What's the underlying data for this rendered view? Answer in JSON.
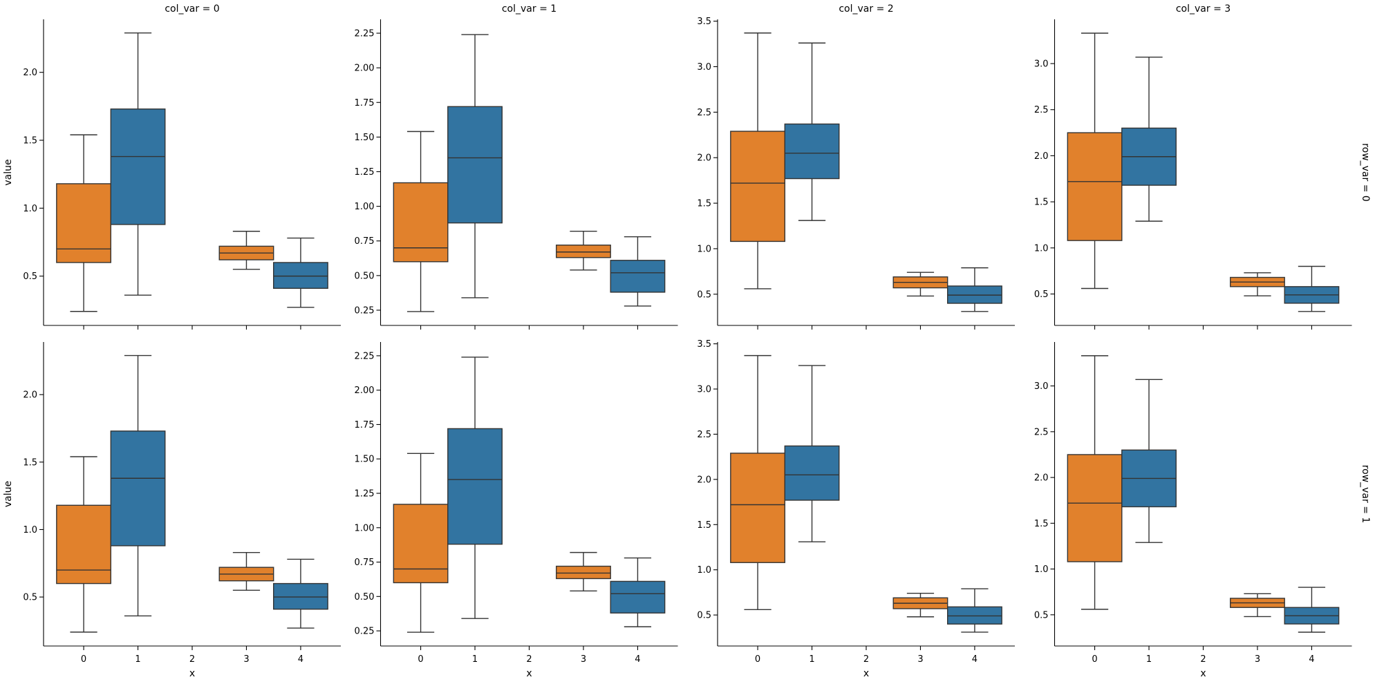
{
  "figure": {
    "background": "#ffffff"
  },
  "chart_data": {
    "type": "box",
    "title": "",
    "xlabel": "x",
    "ylabel": "value",
    "legend": "none",
    "grid": false,
    "facet_grid": {
      "n_rows": 2,
      "n_cols": 4,
      "col_titles": [
        "col_var = 0",
        "col_var = 1",
        "col_var = 2",
        "col_var = 3"
      ],
      "row_labels": [
        "row_var = 0",
        "row_var = 1"
      ],
      "rows_repeat_same_data": true,
      "x_tick_labels": [
        "0",
        "1",
        "2",
        "3",
        "4"
      ],
      "x_range": [
        -0.74,
        4.74
      ]
    },
    "colors": {
      "orange": "#e1812c",
      "blue": "#3274a1",
      "box_edge": "#333333",
      "spine": "#000000",
      "text": "#000000"
    },
    "columns": [
      {
        "title": "col_var = 0",
        "ylim": [
          0.137,
          2.39
        ],
        "yticks": [
          {
            "v": 0.5,
            "label": "0.5"
          },
          {
            "v": 1.0,
            "label": "1.0"
          },
          {
            "v": 1.5,
            "label": "1.5"
          },
          {
            "v": 2.0,
            "label": "2.0"
          }
        ],
        "boxes": [
          {
            "x": 0,
            "color": "orange",
            "whislo": 0.24,
            "q1": 0.6,
            "med": 0.7,
            "q3": 1.18,
            "whishi": 1.54
          },
          {
            "x": 1,
            "color": "blue",
            "whislo": 0.36,
            "q1": 0.88,
            "med": 1.38,
            "q3": 1.73,
            "whishi": 2.29
          },
          {
            "x": 3,
            "color": "orange",
            "whislo": 0.55,
            "q1": 0.62,
            "med": 0.67,
            "q3": 0.72,
            "whishi": 0.83
          },
          {
            "x": 4,
            "color": "blue",
            "whislo": 0.27,
            "q1": 0.41,
            "med": 0.5,
            "q3": 0.6,
            "whishi": 0.78
          }
        ]
      },
      {
        "title": "col_var = 1",
        "ylim": [
          0.14,
          2.35
        ],
        "yticks": [
          {
            "v": 0.25,
            "label": "0.25"
          },
          {
            "v": 0.5,
            "label": "0.50"
          },
          {
            "v": 0.75,
            "label": "0.75"
          },
          {
            "v": 1.0,
            "label": "1.00"
          },
          {
            "v": 1.25,
            "label": "1.25"
          },
          {
            "v": 1.5,
            "label": "1.50"
          },
          {
            "v": 1.75,
            "label": "1.75"
          },
          {
            "v": 2.0,
            "label": "2.00"
          },
          {
            "v": 2.25,
            "label": "2.25"
          }
        ],
        "boxes": [
          {
            "x": 0,
            "color": "orange",
            "whislo": 0.24,
            "q1": 0.6,
            "med": 0.7,
            "q3": 1.17,
            "whishi": 1.54
          },
          {
            "x": 1,
            "color": "blue",
            "whislo": 0.34,
            "q1": 0.88,
            "med": 1.35,
            "q3": 1.72,
            "whishi": 2.24
          },
          {
            "x": 3,
            "color": "orange",
            "whislo": 0.54,
            "q1": 0.63,
            "med": 0.67,
            "q3": 0.72,
            "whishi": 0.82
          },
          {
            "x": 4,
            "color": "blue",
            "whislo": 0.28,
            "q1": 0.38,
            "med": 0.52,
            "q3": 0.61,
            "whishi": 0.78
          }
        ]
      },
      {
        "title": "col_var = 2",
        "ylim": [
          0.157,
          3.52
        ],
        "yticks": [
          {
            "v": 0.5,
            "label": "0.5"
          },
          {
            "v": 1.0,
            "label": "1.0"
          },
          {
            "v": 1.5,
            "label": "1.5"
          },
          {
            "v": 2.0,
            "label": "2.0"
          },
          {
            "v": 2.5,
            "label": "2.5"
          },
          {
            "v": 3.0,
            "label": "3.0"
          },
          {
            "v": 3.5,
            "label": "3.5"
          }
        ],
        "boxes": [
          {
            "x": 0,
            "color": "orange",
            "whislo": 0.56,
            "q1": 1.08,
            "med": 1.72,
            "q3": 2.29,
            "whishi": 3.37
          },
          {
            "x": 1,
            "color": "blue",
            "whislo": 1.31,
            "q1": 1.77,
            "med": 2.05,
            "q3": 2.37,
            "whishi": 3.26
          },
          {
            "x": 3,
            "color": "orange",
            "whislo": 0.48,
            "q1": 0.57,
            "med": 0.63,
            "q3": 0.69,
            "whishi": 0.74
          },
          {
            "x": 4,
            "color": "blue",
            "whislo": 0.31,
            "q1": 0.4,
            "med": 0.49,
            "q3": 0.59,
            "whishi": 0.79
          }
        ]
      },
      {
        "title": "col_var = 3",
        "ylim": [
          0.159,
          3.48
        ],
        "yticks": [
          {
            "v": 0.5,
            "label": "0.5"
          },
          {
            "v": 1.0,
            "label": "1.0"
          },
          {
            "v": 1.5,
            "label": "1.5"
          },
          {
            "v": 2.0,
            "label": "2.0"
          },
          {
            "v": 2.5,
            "label": "2.5"
          },
          {
            "v": 3.0,
            "label": "3.0"
          }
        ],
        "boxes": [
          {
            "x": 0,
            "color": "orange",
            "whislo": 0.56,
            "q1": 1.08,
            "med": 1.72,
            "q3": 2.25,
            "whishi": 3.33
          },
          {
            "x": 1,
            "color": "blue",
            "whislo": 1.29,
            "q1": 1.68,
            "med": 1.99,
            "q3": 2.3,
            "whishi": 3.07
          },
          {
            "x": 3,
            "color": "orange",
            "whislo": 0.48,
            "q1": 0.58,
            "med": 0.63,
            "q3": 0.68,
            "whishi": 0.73
          },
          {
            "x": 4,
            "color": "blue",
            "whislo": 0.31,
            "q1": 0.4,
            "med": 0.49,
            "q3": 0.58,
            "whishi": 0.8
          }
        ]
      }
    ]
  }
}
